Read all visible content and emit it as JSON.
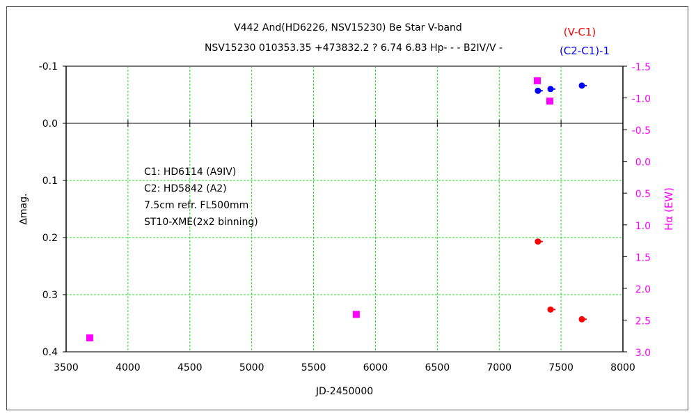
{
  "chart_data": {
    "type": "scatter",
    "title": "V442 And(HD6226, NSV15230)    Be Star    V-band",
    "subtitle": "NSV15230 010353.35 +473832.2 ? 6.74 6.83 Hp- - - B2IV/V -",
    "xlabel": "JD-2450000",
    "ylabel": "∆mag.",
    "y2label": "Hα (EW)",
    "xlim": [
      3500,
      8000
    ],
    "ylim": [
      -0.1,
      0.4
    ],
    "y2lim": [
      -1.5,
      3.0
    ],
    "y_inverted": true,
    "grid": true,
    "xticks": [
      "3500",
      "4000",
      "4500",
      "5000",
      "5500",
      "6000",
      "6500",
      "7000",
      "7500",
      "8000"
    ],
    "yticks": [
      "-0.1",
      "0.0",
      "0.1",
      "0.2",
      "0.3",
      "0.4"
    ],
    "y2ticks": [
      "-1.5",
      "-1.0",
      "-0.5",
      "0.0",
      "0.5",
      "1.0",
      "1.5",
      "2.0",
      "2.5",
      "3.0"
    ],
    "legend": [
      {
        "name": "(V-C1)",
        "color": "#ff0000"
      },
      {
        "name": "(C2-C1)-1",
        "color": "#0000ff"
      }
    ],
    "annotations": [
      "C1: HD6114 (A9IV)",
      "C2: HD5842 (A2)",
      "7.5cm refr. FL500mm",
      "ST10-XME(2x2 binning)"
    ],
    "series": [
      {
        "name": "(V-C1)",
        "axis": "left",
        "marker": "circle",
        "color": "#ff0000",
        "x": [
          7313,
          7415,
          7668
        ],
        "y": [
          0.207,
          0.326,
          0.343
        ]
      },
      {
        "name": "(C2-C1)-1",
        "axis": "left",
        "marker": "circle",
        "color": "#0000ff",
        "x": [
          7313,
          7415,
          7668
        ],
        "y": [
          -0.057,
          -0.06,
          -0.066
        ]
      },
      {
        "name": "Hα (EW)",
        "axis": "right",
        "marker": "square",
        "color": "#ff00ff",
        "x": [
          3691,
          5845,
          7308,
          7409
        ],
        "y": [
          2.78,
          2.41,
          -1.27,
          -0.95
        ]
      }
    ]
  }
}
